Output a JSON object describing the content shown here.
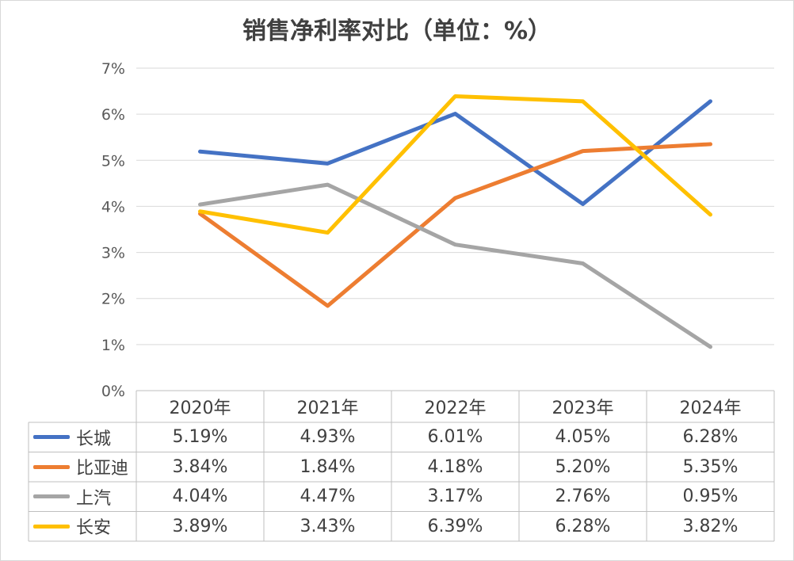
{
  "chart_data": {
    "type": "line",
    "title": "销售净利率对比（单位：%）",
    "categories": [
      "2020年",
      "2021年",
      "2022年",
      "2023年",
      "2024年"
    ],
    "ylim": [
      0,
      7
    ],
    "y_ticks": [
      "0%",
      "1%",
      "2%",
      "3%",
      "4%",
      "5%",
      "6%",
      "7%"
    ],
    "grid": true,
    "legend": "data-table",
    "series": [
      {
        "name": "长城",
        "color": "#4472C4",
        "values": [
          5.19,
          4.93,
          6.01,
          4.05,
          6.28
        ],
        "labels": [
          "5.19%",
          "4.93%",
          "6.01%",
          "4.05%",
          "6.28%"
        ]
      },
      {
        "name": "比亚迪",
        "color": "#ED7D31",
        "values": [
          3.84,
          1.84,
          4.18,
          5.2,
          5.35
        ],
        "labels": [
          "3.84%",
          "1.84%",
          "4.18%",
          "5.20%",
          "5.35%"
        ]
      },
      {
        "name": "上汽",
        "color": "#A5A5A5",
        "values": [
          4.04,
          4.47,
          3.17,
          2.76,
          0.95
        ],
        "labels": [
          "4.04%",
          "4.47%",
          "3.17%",
          "2.76%",
          "0.95%"
        ]
      },
      {
        "name": "长安",
        "color": "#FFC000",
        "values": [
          3.89,
          3.43,
          6.39,
          6.28,
          3.82
        ],
        "labels": [
          "3.89%",
          "3.43%",
          "6.39%",
          "6.28%",
          "3.82%"
        ]
      }
    ]
  }
}
